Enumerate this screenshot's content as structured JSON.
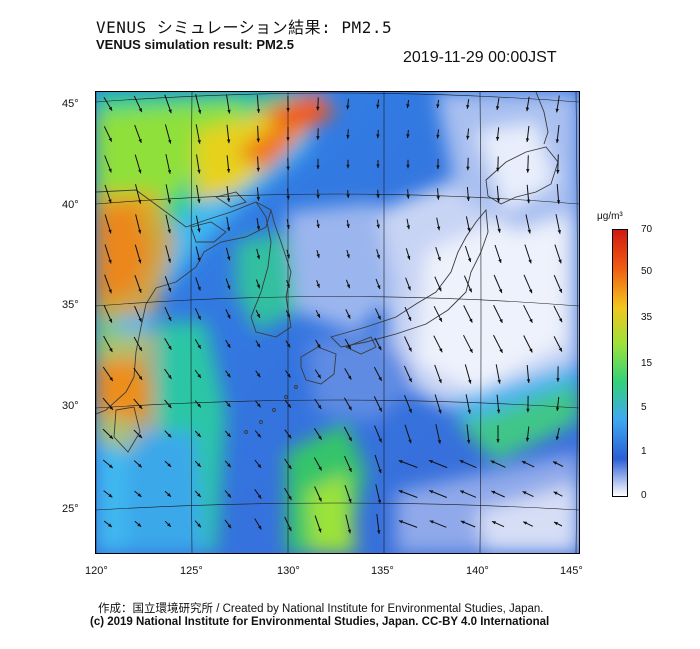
{
  "header": {
    "title_jp": "VENUS シミュレーション結果: PM2.5",
    "title_en": "VENUS simulation result: PM2.5",
    "timestamp": "2019-11-29 00:00JST"
  },
  "map": {
    "lat_labels": [
      "45°",
      "40°",
      "35°",
      "30°",
      "25°"
    ],
    "lon_labels": [
      "120°",
      "125°",
      "130°",
      "135°",
      "140°",
      "145°"
    ],
    "ocean_color": "#3d7fe0",
    "land_outline_color": "#3b3b3b",
    "wind_arrow_color": "#111111"
  },
  "colorbar": {
    "unit": "μg/m³",
    "tick_labels": [
      "70",
      "50",
      "35",
      "15",
      "5",
      "1",
      "0"
    ],
    "colors": [
      "#ffffff",
      "#2a5fd6",
      "#3fa9f0",
      "#32d17a",
      "#9be23a",
      "#f2c61e",
      "#f05a12",
      "#d01a10"
    ]
  },
  "footer": {
    "credit_line1": "作成：国立環境研究所 / Created by National Institute for Environmental Studies, Japan.",
    "credit_line2": "(c) 2019 National Institute for Environmental Studies, Japan. CC-BY 4.0 International"
  }
}
